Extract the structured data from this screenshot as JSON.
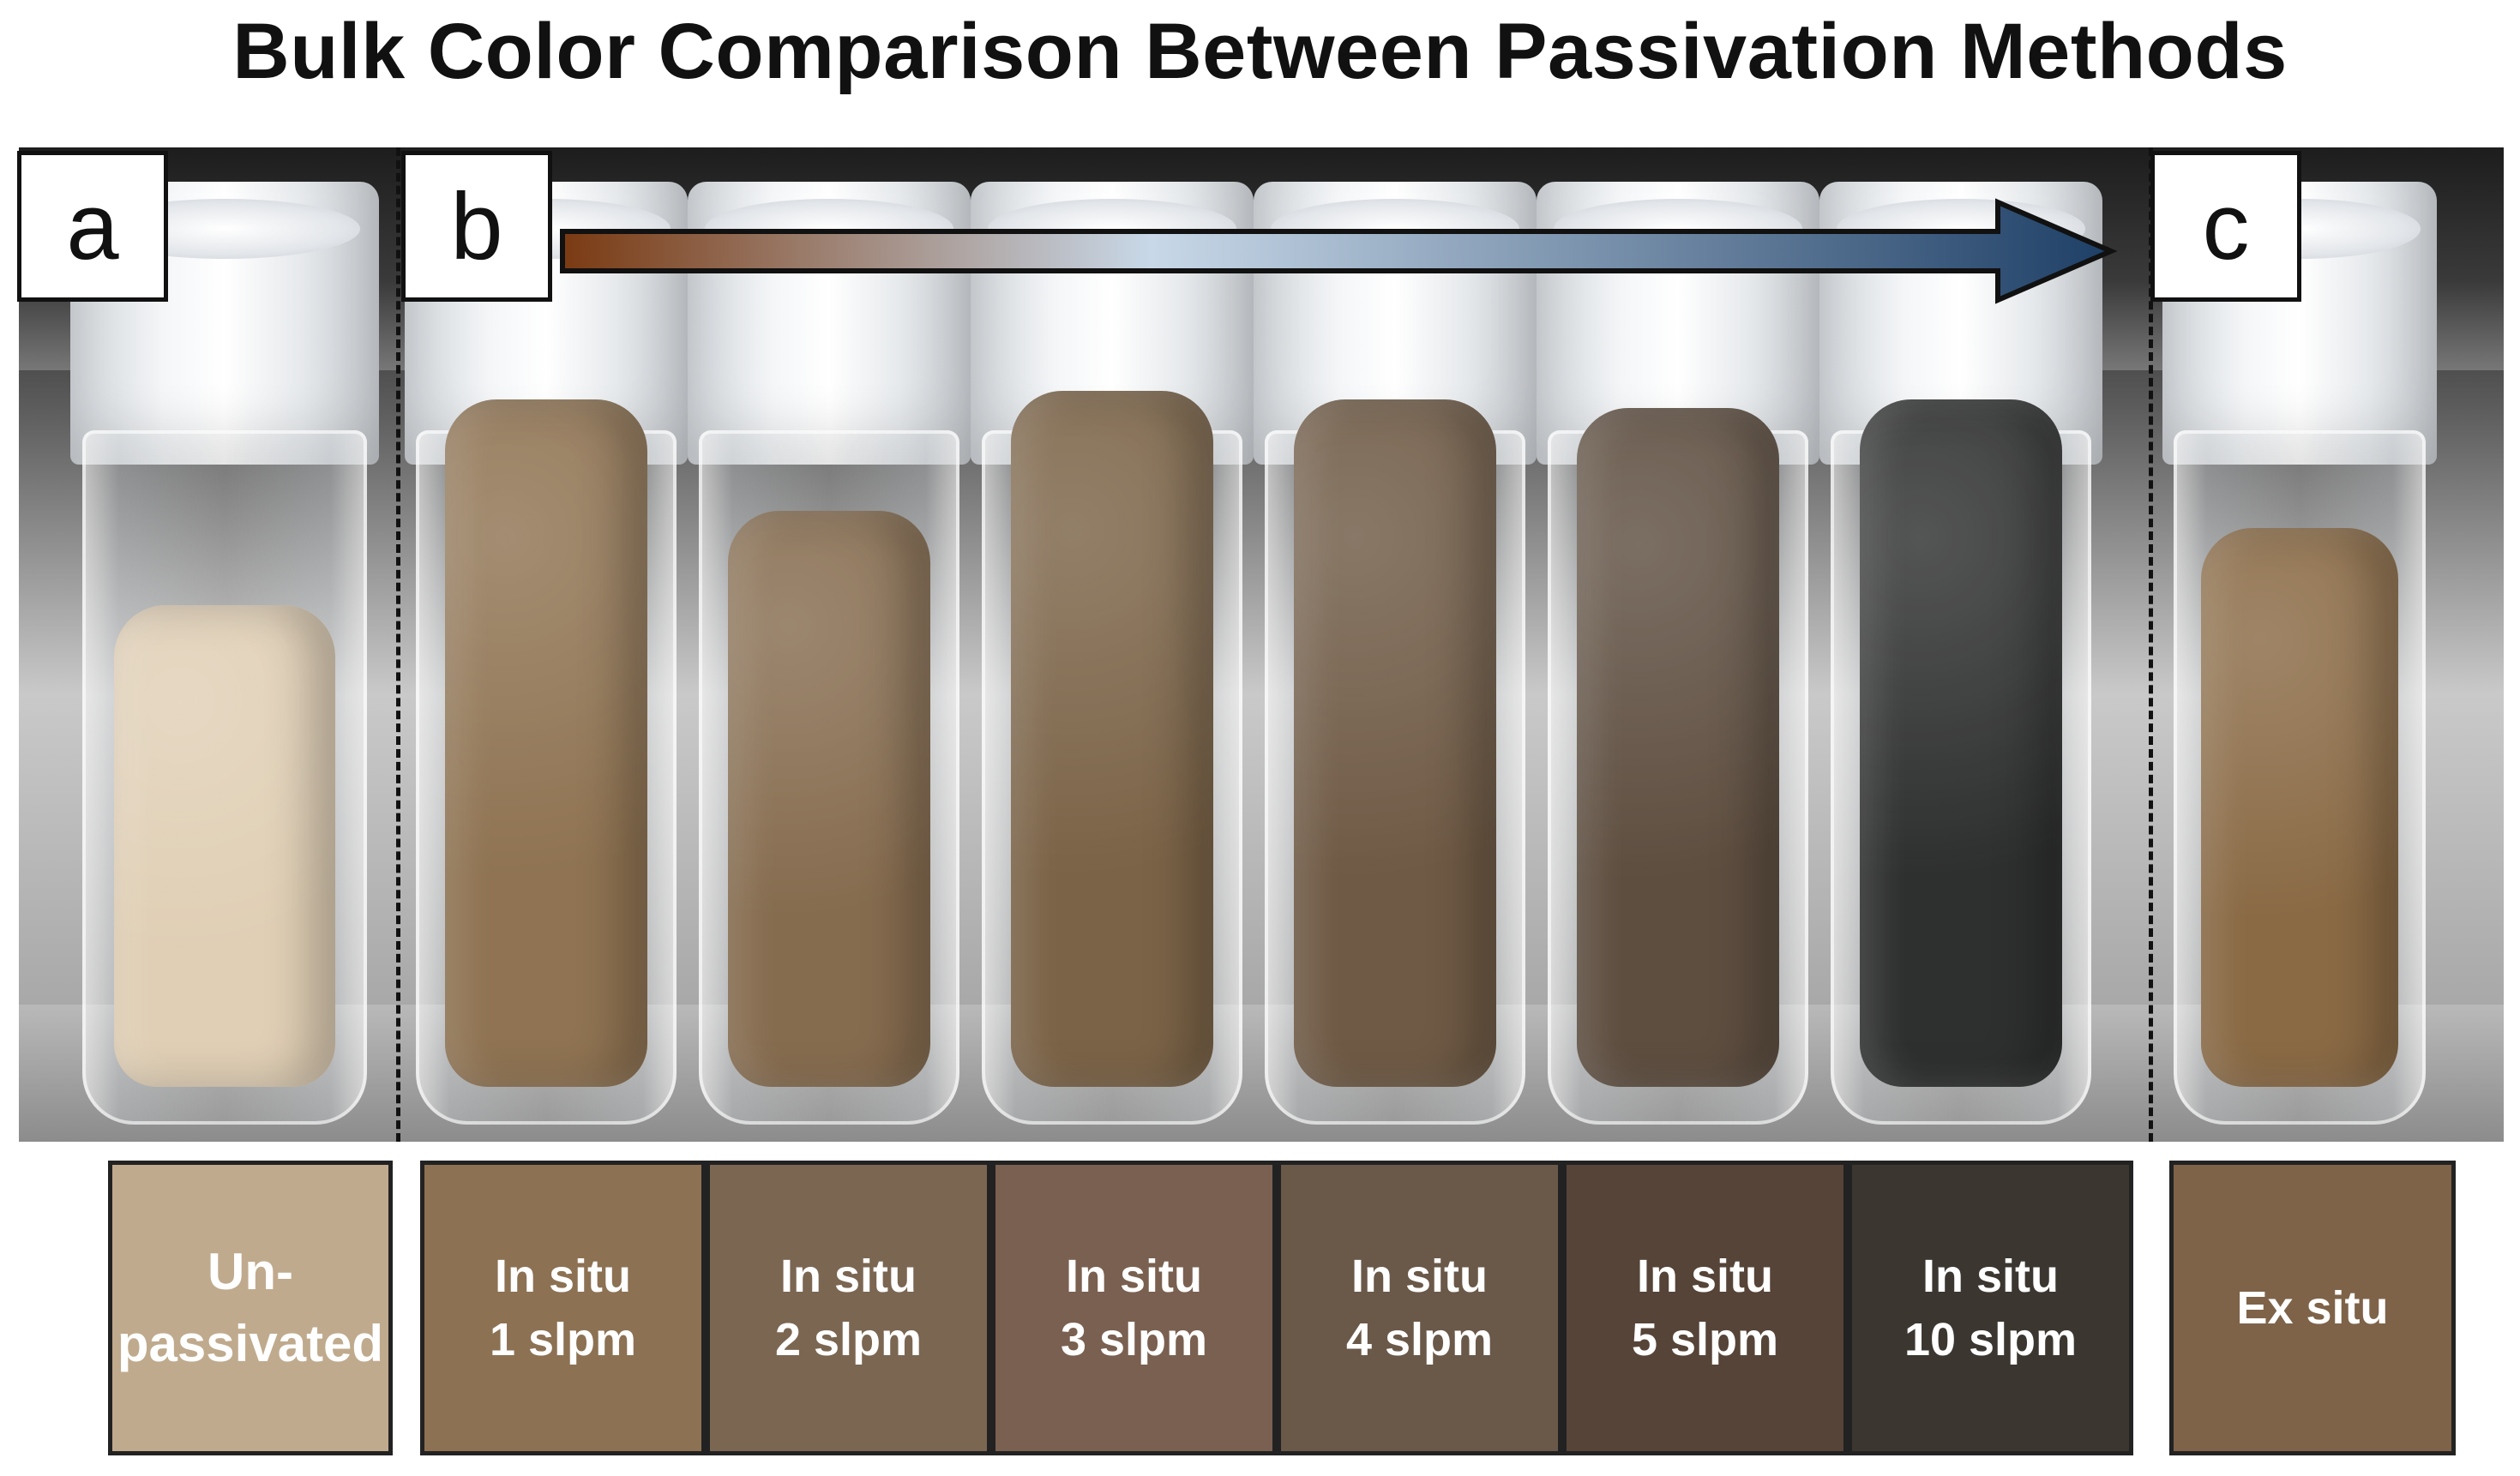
{
  "title": "Bulk Color Comparison Between Passivation Methods",
  "panel_labels": [
    "a",
    "b",
    "c"
  ],
  "swatches": [
    {
      "label": "Un-\npassivated",
      "color": "#c0aa8d"
    },
    {
      "label": "In situ\n1 slpm",
      "color": "#8c7153"
    },
    {
      "label": "In situ\n2 slpm",
      "color": "#7b6652"
    },
    {
      "label": "In situ\n3 slpm",
      "color": "#7a6050"
    },
    {
      "label": "In situ\n4 slpm",
      "color": "#6a5849"
    },
    {
      "label": "In situ\n5 slpm",
      "color": "#564438"
    },
    {
      "label": "In situ\n10 slpm",
      "color": "#3b3730"
    },
    {
      "label": "Ex situ",
      "color": "#7e6349"
    }
  ],
  "vial_powder_colors": [
    "#e0cfb5",
    "#8f7352",
    "#866c4f",
    "#7b6347",
    "#6f5a45",
    "#5e4e40",
    "#2e2f2f",
    "#8a6a45"
  ],
  "arrow_gradient": [
    "#7a3a12",
    "#c8d8e8",
    "#1e3f66"
  ]
}
